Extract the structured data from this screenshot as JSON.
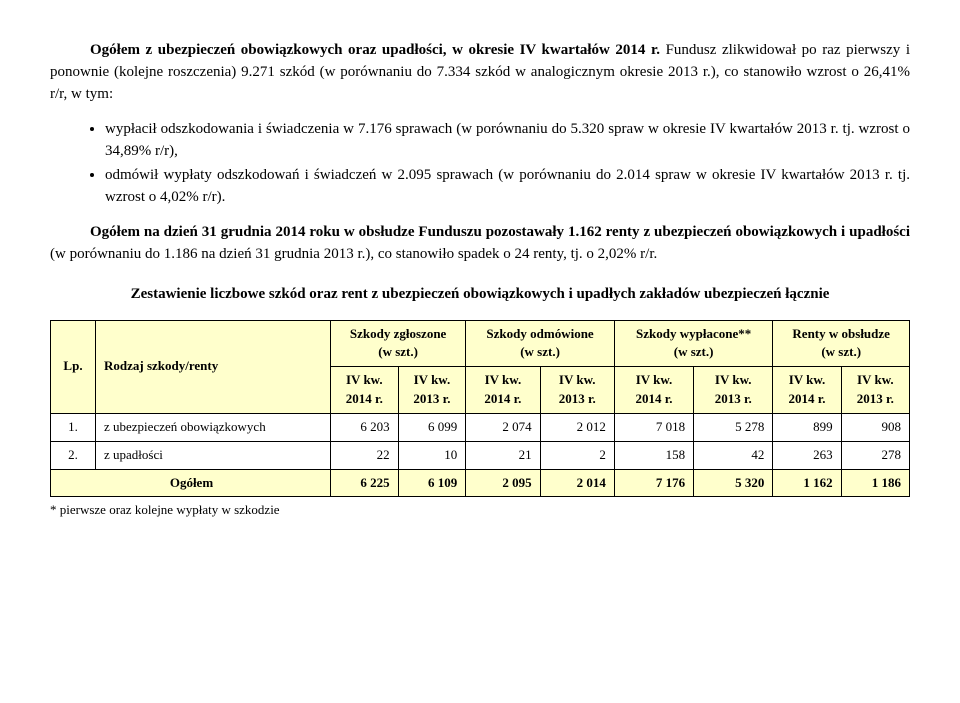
{
  "para1_lead": "Ogółem z ubezpieczeń obowiązkowych oraz upadłości, w okresie IV kwartałów 2014 r.",
  "para1_rest": " Fundusz zlikwidował po raz pierwszy i ponownie (kolejne roszczenia) 9.271 szkód (w porównaniu do 7.334 szkód w analogicznym okresie 2013 r.), co stanowiło wzrost o 26,41% r/r, w tym:",
  "bullet1": "wypłacił odszkodowania i świadczenia w 7.176 sprawach (w porównaniu do 5.320 spraw w okresie IV kwartałów 2013 r. tj. wzrost o 34,89% r/r),",
  "bullet2": "odmówił wypłaty odszkodowań i świadczeń w 2.095 sprawach (w porównaniu do 2.014 spraw w okresie IV kwartałów 2013 r. tj. wzrost o 4,02% r/r).",
  "para2_prefix": "Ogółem na dzień 31 grudnia 2014 roku w obsłudze Funduszu pozostawały 1.162 renty z ubezpieczeń obowiązkowych i upadłości",
  "para2_rest": " (w porównaniu do 1.186 na dzień 31 grudnia 2013 r.), co stanowiło spadek o 24 renty, tj. o 2,02% r/r.",
  "centered_title": "Zestawienie liczbowe szkód oraz rent z ubezpieczeń obowiązkowych i upadłych zakładów ubezpieczeń łącznie",
  "table": {
    "head": {
      "lp": "Lp.",
      "rodzaj": "Rodzaj szkody/renty",
      "col_groups": [
        "Szkody zgłoszone\n(w szt.)",
        "Szkody odmówione\n(w szt.)",
        "Szkody wypłacone**\n(w szt.)",
        "Renty w obsłudze\n(w szt.)"
      ],
      "sub_2014": "IV kw.\n2014 r.",
      "sub_2013": "IV kw.\n2013 r."
    },
    "rows": [
      {
        "lp": "1.",
        "label": "z ubezpieczeń obowiązkowych",
        "vals": [
          "6 203",
          "6 099",
          "2 074",
          "2 012",
          "7 018",
          "5 278",
          "899",
          "908"
        ]
      },
      {
        "lp": "2.",
        "label": "z upadłości",
        "vals": [
          "22",
          "10",
          "21",
          "2",
          "158",
          "42",
          "263",
          "278"
        ]
      }
    ],
    "total": {
      "label": "Ogółem",
      "vals": [
        "6 225",
        "6 109",
        "2 095",
        "2 014",
        "7 176",
        "5 320",
        "1 162",
        "1 186"
      ]
    }
  },
  "footnote": "* pierwsze oraz kolejne wypłaty w szkodzie"
}
